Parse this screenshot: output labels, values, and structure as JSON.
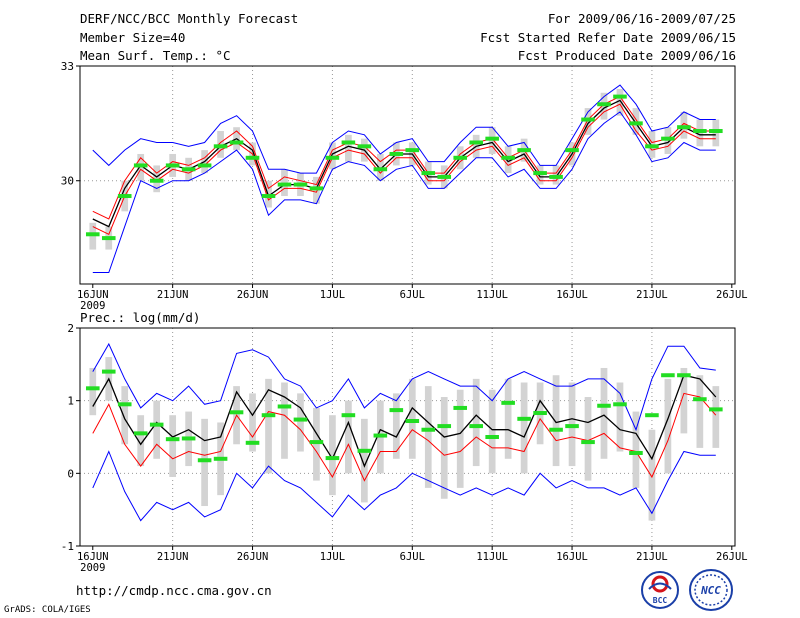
{
  "header": {
    "title": "DERF/NCC/BCC Monthly Forecast",
    "member_size": "Member Size=40",
    "variable": "Mean Surf. Temp.: °C",
    "period": "For 2009/06/16-2009/07/25",
    "refer_date": "Fcst Started Refer Date 2009/06/15",
    "produced_date": "Fcst Produced Date 2009/06/16"
  },
  "footer": {
    "url": "http://cmdp.ncc.cma.gov.cn",
    "credit": "GrADS: COLA/IGES",
    "logo_bcc": "BCC",
    "logo_ncc": "NCC"
  },
  "colors": {
    "envelope": "#0000ff",
    "ensemble_mean": "#000000",
    "lower": "#ff0000",
    "green_marker": "#22dd22",
    "gray_bar": "#d3d3d3",
    "grid": "#999999"
  },
  "chart_data": [
    {
      "type": "line",
      "title": "Mean Surf. Temp.: °C",
      "x_tick_labels": [
        "16JUN",
        "21JUN",
        "26JUN",
        "1JUL",
        "6JUL",
        "11JUL",
        "16JUL",
        "21JUL",
        "26JUL"
      ],
      "x_tick_days": [
        0,
        5,
        10,
        15,
        20,
        25,
        30,
        35,
        40
      ],
      "year_label": "2009",
      "y_tick_labels": [
        "33",
        "30"
      ],
      "y_ticks": [
        33,
        30
      ],
      "ylim": [
        27.3,
        33.0
      ],
      "xlim": [
        -0.8,
        40.2
      ],
      "gridlines": [
        30
      ],
      "days": [
        0,
        1,
        2,
        3,
        4,
        5,
        6,
        7,
        8,
        9,
        10,
        11,
        12,
        13,
        14,
        15,
        16,
        17,
        18,
        19,
        20,
        21,
        22,
        23,
        24,
        25,
        26,
        27,
        28,
        29,
        30,
        31,
        32,
        33,
        34,
        35,
        36,
        37,
        38,
        39
      ],
      "series": [
        {
          "name": "upper envelope",
          "color": "#0000ff",
          "values": [
            30.8,
            30.4,
            30.8,
            31.1,
            31.0,
            31.0,
            30.9,
            31.0,
            31.5,
            31.7,
            31.3,
            30.3,
            30.3,
            30.2,
            30.2,
            31.0,
            31.3,
            31.2,
            30.7,
            31.0,
            31.1,
            30.5,
            30.5,
            31.0,
            31.4,
            31.4,
            30.9,
            31.0,
            30.4,
            30.4,
            31.1,
            31.8,
            32.2,
            32.5,
            32.0,
            31.3,
            31.4,
            31.8,
            31.6,
            31.6
          ]
        },
        {
          "name": "upper red",
          "color": "#ff0000",
          "values": [
            29.2,
            29.0,
            30.0,
            30.6,
            30.2,
            30.5,
            30.4,
            30.6,
            31.0,
            31.3,
            30.9,
            29.8,
            30.1,
            30.0,
            29.9,
            30.8,
            31.0,
            30.9,
            30.5,
            30.8,
            30.8,
            30.2,
            30.2,
            30.7,
            31.0,
            31.1,
            30.6,
            30.8,
            30.2,
            30.2,
            30.8,
            31.6,
            32.0,
            32.2,
            31.6,
            31.0,
            31.1,
            31.5,
            31.3,
            31.3
          ]
        },
        {
          "name": "ensemble mean",
          "color": "#000000",
          "values": [
            29.0,
            28.8,
            29.8,
            30.4,
            30.1,
            30.4,
            30.3,
            30.5,
            30.9,
            31.1,
            30.8,
            29.6,
            29.9,
            29.9,
            29.8,
            30.7,
            30.9,
            30.8,
            30.3,
            30.7,
            30.7,
            30.1,
            30.1,
            30.6,
            30.9,
            31.0,
            30.5,
            30.7,
            30.1,
            30.1,
            30.7,
            31.5,
            31.9,
            32.1,
            31.5,
            30.9,
            31.0,
            31.4,
            31.2,
            31.2
          ]
        },
        {
          "name": "lower red",
          "color": "#ff0000",
          "values": [
            28.8,
            28.6,
            29.6,
            30.3,
            30.0,
            30.3,
            30.2,
            30.4,
            30.8,
            31.0,
            30.7,
            29.5,
            29.8,
            29.8,
            29.7,
            30.6,
            30.8,
            30.7,
            30.2,
            30.6,
            30.6,
            30.0,
            30.0,
            30.5,
            30.8,
            30.9,
            30.4,
            30.6,
            30.0,
            30.0,
            30.6,
            31.4,
            31.8,
            32.0,
            31.3,
            30.8,
            30.9,
            31.3,
            31.1,
            31.1
          ]
        },
        {
          "name": "lower envelope",
          "color": "#0000ff",
          "values": [
            27.6,
            27.6,
            28.8,
            30.0,
            29.8,
            30.0,
            30.0,
            30.2,
            30.5,
            30.8,
            30.3,
            29.1,
            29.5,
            29.5,
            29.4,
            30.3,
            30.5,
            30.4,
            30.0,
            30.3,
            30.4,
            29.8,
            29.8,
            30.2,
            30.6,
            30.6,
            30.1,
            30.3,
            29.8,
            29.8,
            30.3,
            31.1,
            31.5,
            31.8,
            31.2,
            30.5,
            30.6,
            31.0,
            30.8,
            30.8
          ]
        }
      ],
      "gray_bars": [
        [
          28.2,
          28.9
        ],
        [
          28.2,
          28.8
        ],
        [
          29.2,
          30.0
        ],
        [
          30.0,
          30.7
        ],
        [
          29.7,
          30.4
        ],
        [
          30.1,
          30.7
        ],
        [
          30.0,
          30.6
        ],
        [
          30.2,
          30.8
        ],
        [
          30.6,
          31.3
        ],
        [
          30.8,
          31.4
        ],
        [
          30.4,
          31.0
        ],
        [
          29.3,
          30.0
        ],
        [
          29.6,
          30.3
        ],
        [
          29.6,
          30.2
        ],
        [
          29.4,
          30.1
        ],
        [
          30.3,
          31.0
        ],
        [
          30.5,
          31.2
        ],
        [
          30.5,
          31.1
        ],
        [
          30.0,
          30.7
        ],
        [
          30.4,
          31.0
        ],
        [
          30.4,
          31.0
        ],
        [
          29.9,
          30.5
        ],
        [
          29.8,
          30.4
        ],
        [
          30.3,
          30.9
        ],
        [
          30.6,
          31.2
        ],
        [
          30.7,
          31.4
        ],
        [
          30.2,
          30.9
        ],
        [
          30.5,
          31.1
        ],
        [
          29.9,
          30.4
        ],
        [
          29.9,
          30.4
        ],
        [
          30.4,
          31.0
        ],
        [
          31.2,
          31.9
        ],
        [
          31.6,
          32.3
        ],
        [
          31.7,
          32.4
        ],
        [
          31.2,
          31.9
        ],
        [
          30.6,
          31.3
        ],
        [
          30.7,
          31.4
        ],
        [
          31.1,
          31.8
        ],
        [
          30.9,
          31.6
        ],
        [
          30.9,
          31.6
        ]
      ],
      "green_markers": [
        28.6,
        28.5,
        29.6,
        30.4,
        30.0,
        30.4,
        30.3,
        30.4,
        30.9,
        31.0,
        30.6,
        29.6,
        29.9,
        29.9,
        29.8,
        30.6,
        31.0,
        30.9,
        30.3,
        30.7,
        30.8,
        30.2,
        30.1,
        30.6,
        31.0,
        31.1,
        30.6,
        30.8,
        30.2,
        30.1,
        30.8,
        31.6,
        32.0,
        32.2,
        31.5,
        30.9,
        31.1,
        31.4,
        31.3,
        31.3
      ]
    },
    {
      "type": "line",
      "title": "Prec.: log(mm/d)",
      "x_tick_labels": [
        "16JUN",
        "21JUN",
        "26JUN",
        "1JUL",
        "6JUL",
        "11JUL",
        "16JUL",
        "21JUL",
        "26JUL"
      ],
      "x_tick_days": [
        0,
        5,
        10,
        15,
        20,
        25,
        30,
        35,
        40
      ],
      "year_label": "2009",
      "y_tick_labels": [
        "2",
        "1",
        "0",
        "-1"
      ],
      "y_ticks": [
        2,
        1,
        0,
        -1
      ],
      "ylim": [
        -1.0,
        2.0
      ],
      "xlim": [
        -0.8,
        40.2
      ],
      "gridlines": [
        1,
        0
      ],
      "days": [
        0,
        1,
        2,
        3,
        4,
        5,
        6,
        7,
        8,
        9,
        10,
        11,
        12,
        13,
        14,
        15,
        16,
        17,
        18,
        19,
        20,
        21,
        22,
        23,
        24,
        25,
        26,
        27,
        28,
        29,
        30,
        31,
        32,
        33,
        34,
        35,
        36,
        37,
        38,
        39
      ],
      "series": [
        {
          "name": "upper envelope",
          "color": "#0000ff",
          "values": [
            1.4,
            1.78,
            1.3,
            0.9,
            1.1,
            1.0,
            1.2,
            0.95,
            1.0,
            1.65,
            1.7,
            1.6,
            1.3,
            1.2,
            0.9,
            1.0,
            1.3,
            0.9,
            1.1,
            1.0,
            1.3,
            1.4,
            1.3,
            1.2,
            1.2,
            1.0,
            1.3,
            1.4,
            1.3,
            1.2,
            1.2,
            1.3,
            1.3,
            1.1,
            0.6,
            1.3,
            1.75,
            1.75,
            1.45,
            1.42
          ]
        },
        {
          "name": "ensemble mean",
          "color": "#000000",
          "values": [
            0.92,
            1.3,
            0.75,
            0.4,
            0.7,
            0.5,
            0.6,
            0.45,
            0.5,
            1.12,
            0.8,
            1.15,
            1.05,
            0.9,
            0.55,
            0.2,
            0.7,
            0.1,
            0.6,
            0.5,
            0.9,
            0.7,
            0.5,
            0.55,
            0.8,
            0.6,
            0.6,
            0.5,
            1.0,
            0.7,
            0.75,
            0.7,
            0.8,
            0.6,
            0.55,
            0.2,
            0.75,
            1.35,
            1.3,
            1.05
          ]
        },
        {
          "name": "lower red",
          "color": "#ff0000",
          "values": [
            0.55,
            0.95,
            0.4,
            0.1,
            0.4,
            0.2,
            0.3,
            0.25,
            0.3,
            0.8,
            0.5,
            0.85,
            0.8,
            0.6,
            0.3,
            -0.05,
            0.4,
            -0.1,
            0.3,
            0.3,
            0.6,
            0.45,
            0.25,
            0.3,
            0.5,
            0.35,
            0.35,
            0.3,
            0.75,
            0.45,
            0.5,
            0.45,
            0.55,
            0.35,
            0.3,
            -0.05,
            0.45,
            1.1,
            1.05,
            0.8
          ]
        },
        {
          "name": "lower envelope",
          "color": "#0000ff",
          "values": [
            -0.2,
            0.3,
            -0.25,
            -0.65,
            -0.4,
            -0.5,
            -0.4,
            -0.6,
            -0.5,
            0.0,
            -0.2,
            0.1,
            -0.1,
            -0.2,
            -0.4,
            -0.6,
            -0.3,
            -0.5,
            -0.3,
            -0.2,
            0.0,
            -0.1,
            -0.2,
            -0.3,
            -0.2,
            -0.3,
            -0.2,
            -0.3,
            0.0,
            -0.2,
            -0.1,
            -0.2,
            -0.2,
            -0.3,
            -0.2,
            -0.55,
            -0.1,
            0.3,
            0.25,
            0.25
          ]
        }
      ],
      "gray_bars": [
        [
          0.8,
          1.45
        ],
        [
          1.0,
          1.6
        ],
        [
          0.4,
          1.2
        ],
        [
          0.1,
          0.8
        ],
        [
          0.2,
          1.0
        ],
        [
          -0.05,
          0.8
        ],
        [
          0.1,
          0.85
        ],
        [
          -0.45,
          0.75
        ],
        [
          -0.3,
          0.7
        ],
        [
          0.4,
          1.2
        ],
        [
          0.3,
          1.1
        ],
        [
          0.0,
          1.3
        ],
        [
          0.2,
          1.25
        ],
        [
          0.3,
          1.1
        ],
        [
          -0.1,
          0.9
        ],
        [
          -0.3,
          0.8
        ],
        [
          0.0,
          1.0
        ],
        [
          -0.4,
          0.75
        ],
        [
          0.0,
          1.0
        ],
        [
          0.2,
          1.1
        ],
        [
          0.2,
          1.3
        ],
        [
          -0.2,
          1.2
        ],
        [
          -0.35,
          1.05
        ],
        [
          -0.2,
          1.15
        ],
        [
          0.1,
          1.3
        ],
        [
          0.0,
          1.15
        ],
        [
          0.2,
          1.3
        ],
        [
          0.0,
          1.25
        ],
        [
          0.4,
          1.25
        ],
        [
          0.1,
          1.35
        ],
        [
          0.1,
          1.25
        ],
        [
          -0.1,
          1.05
        ],
        [
          0.2,
          1.45
        ],
        [
          0.3,
          1.25
        ],
        [
          -0.2,
          0.85
        ],
        [
          -0.65,
          0.6
        ],
        [
          0.0,
          1.3
        ],
        [
          0.55,
          1.45
        ],
        [
          0.35,
          1.35
        ],
        [
          0.35,
          1.2
        ]
      ],
      "green_markers": [
        1.17,
        1.4,
        0.95,
        0.55,
        0.67,
        0.47,
        0.48,
        0.18,
        0.2,
        0.84,
        0.42,
        0.8,
        0.92,
        0.74,
        0.43,
        0.21,
        0.8,
        0.31,
        0.52,
        0.87,
        0.72,
        0.6,
        0.65,
        0.9,
        0.65,
        0.5,
        0.97,
        0.75,
        0.83,
        0.6,
        0.65,
        0.43,
        0.93,
        0.95,
        0.28,
        0.8,
        1.35,
        1.35,
        1.02,
        0.88
      ]
    }
  ]
}
